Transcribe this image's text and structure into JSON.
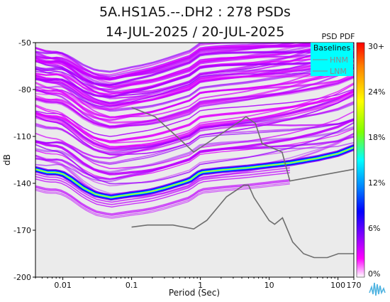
{
  "title_line1": "5A.HS1A5.--.DH2 : 278 PSDs",
  "title_line2": "14-JUL-2025 / 20-JUL-2025",
  "chart_data": {
    "type": "heatmap",
    "xlabel": "Period (Sec)",
    "ylabel": "dB",
    "xscale": "log",
    "xlim": [
      0.004,
      170
    ],
    "ylim": [
      -200,
      -50
    ],
    "xticks": [
      {
        "value": 0.01,
        "label": "0.01"
      },
      {
        "value": 0.1,
        "label": "0.1"
      },
      {
        "value": 1,
        "label": "1"
      },
      {
        "value": 10,
        "label": "10"
      },
      {
        "value": 100,
        "label": "100"
      },
      {
        "value": 170,
        "label": "170"
      }
    ],
    "yticks": [
      -50,
      -80,
      -110,
      -140,
      -170,
      -200
    ],
    "colorbar": {
      "title": "PSD PDF",
      "labels": [
        "30+",
        "24%",
        "18%",
        "12%",
        "6%",
        "0%"
      ],
      "stops": [
        "#ff0000",
        "#ff8000",
        "#ffff00",
        "#80ff00",
        "#00ffff",
        "#0080ff",
        "#0000ff",
        "#8000ff",
        "#ff00ff",
        "#ffffff"
      ]
    },
    "legend": {
      "title": "Baselines",
      "items": [
        "HNM",
        "LNM"
      ],
      "placement": "top-right",
      "color": "#00ffff"
    },
    "series": [
      {
        "name": "HNM",
        "x": [
          0.1,
          0.22,
          0.8,
          3.8,
          4.6,
          6.3,
          7.9,
          15.4,
          20,
          170
        ],
        "y": [
          -91.5,
          -97.4,
          -120,
          -100.2,
          -97.4,
          -101.7,
          -114.7,
          -120,
          -138.5,
          -131
        ]
      },
      {
        "name": "LNM",
        "x": [
          0.1,
          0.17,
          0.4,
          0.8,
          1.24,
          2.4,
          4.3,
          5,
          6,
          10,
          12,
          15.6,
          21.9,
          31.6,
          45,
          70,
          101,
          154,
          170
        ],
        "y": [
          -168,
          -166.7,
          -166.7,
          -169.2,
          -163.7,
          -148.6,
          -141.1,
          -141.1,
          -149.0,
          -163.8,
          -166.2,
          -162.1,
          -177.5,
          -185.0,
          -187.5,
          -187.5,
          -185.0,
          -185.0,
          -185.0
        ]
      },
      {
        "name": "mode",
        "x": [
          0.004,
          0.006,
          0.008,
          0.01,
          0.013,
          0.02,
          0.03,
          0.05,
          0.07,
          0.1,
          0.15,
          0.2,
          0.3,
          0.5,
          0.7,
          1,
          2,
          5,
          10,
          20,
          50,
          100,
          170
        ],
        "y": [
          -131,
          -133,
          -133,
          -134,
          -137,
          -143,
          -147,
          -149,
          -148,
          -147,
          -146,
          -145,
          -143,
          -140,
          -138,
          -133,
          -131.5,
          -130,
          -128.5,
          -127,
          -124,
          -121,
          -117
        ]
      }
    ]
  }
}
